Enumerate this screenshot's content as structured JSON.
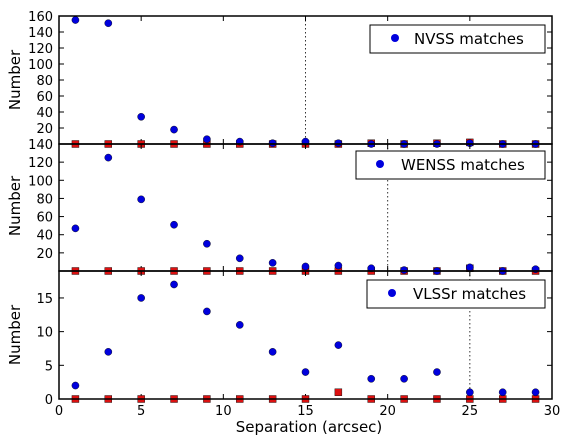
{
  "chart_data": [
    {
      "type": "scatter",
      "ylabel": "Number",
      "legend": {
        "label": "NVSS matches",
        "placement": "top-right"
      },
      "xlim": [
        0,
        30
      ],
      "ylim": [
        0,
        160
      ],
      "yticks": [
        0,
        20,
        40,
        60,
        80,
        100,
        120,
        140,
        160
      ],
      "ytick_labels": [
        "",
        "20",
        "40",
        "60",
        "80",
        "100",
        "120",
        "140",
        "160"
      ],
      "vline": 15,
      "series": [
        {
          "marker": "circle",
          "color": "#0000dd",
          "x": [
            1,
            3,
            5,
            7,
            9,
            11,
            13,
            15,
            17,
            19,
            21,
            23,
            25,
            27,
            29
          ],
          "y": [
            155,
            151,
            34,
            18,
            6,
            3,
            1,
            3,
            1,
            0,
            0,
            0,
            1,
            0,
            0
          ]
        },
        {
          "marker": "square",
          "color": "#dd1111",
          "x": [
            1,
            3,
            5,
            7,
            9,
            11,
            13,
            15,
            17,
            19,
            21,
            23,
            25,
            27,
            29
          ],
          "y": [
            0,
            0,
            0,
            0,
            0,
            0,
            0,
            0,
            0,
            1,
            0,
            1,
            2,
            0,
            0
          ]
        }
      ]
    },
    {
      "type": "scatter",
      "ylabel": "Number",
      "legend": {
        "label": "WENSS matches",
        "placement": "top-right"
      },
      "xlim": [
        0,
        30
      ],
      "ylim": [
        0,
        140
      ],
      "yticks": [
        0,
        20,
        40,
        60,
        80,
        100,
        120,
        140
      ],
      "ytick_labels": [
        "",
        "20",
        "40",
        "60",
        "80",
        "100",
        "120",
        "140"
      ],
      "vline": 20,
      "series": [
        {
          "marker": "circle",
          "color": "#0000dd",
          "x": [
            1,
            3,
            5,
            7,
            9,
            11,
            13,
            15,
            17,
            19,
            21,
            23,
            25,
            27,
            29
          ],
          "y": [
            47,
            125,
            79,
            51,
            30,
            14,
            9,
            5,
            6,
            3,
            1,
            0,
            4,
            0,
            2
          ]
        },
        {
          "marker": "square",
          "color": "#dd1111",
          "x": [
            1,
            3,
            5,
            7,
            9,
            11,
            13,
            15,
            17,
            19,
            21,
            23,
            25,
            27,
            29
          ],
          "y": [
            0,
            0,
            0,
            0,
            0,
            0,
            0,
            0,
            0,
            0,
            0,
            0,
            3,
            0,
            0
          ]
        }
      ]
    },
    {
      "type": "scatter",
      "ylabel": "Number",
      "xlabel": "Separation (arcsec)",
      "legend": {
        "label": "VLSSr matches",
        "placement": "top-right"
      },
      "xlim": [
        0,
        30
      ],
      "ylim": [
        0,
        19
      ],
      "xticks": [
        0,
        5,
        10,
        15,
        20,
        25,
        30
      ],
      "yticks": [
        0,
        5,
        10,
        15
      ],
      "ytick_labels": [
        "0",
        "5",
        "10",
        "15"
      ],
      "vline": 25,
      "series": [
        {
          "marker": "circle",
          "color": "#0000dd",
          "x": [
            1,
            3,
            5,
            7,
            9,
            11,
            13,
            15,
            17,
            19,
            21,
            23,
            25,
            27,
            29
          ],
          "y": [
            2,
            7,
            15,
            17,
            13,
            11,
            7,
            4,
            8,
            3,
            3,
            4,
            1,
            1,
            1
          ]
        },
        {
          "marker": "square",
          "color": "#dd1111",
          "x": [
            1,
            3,
            5,
            7,
            9,
            11,
            13,
            15,
            17,
            19,
            21,
            23,
            25,
            27,
            29
          ],
          "y": [
            0,
            0,
            0,
            0,
            0,
            0,
            0,
            0,
            1,
            0,
            0,
            0,
            0,
            0,
            0
          ]
        }
      ]
    }
  ]
}
